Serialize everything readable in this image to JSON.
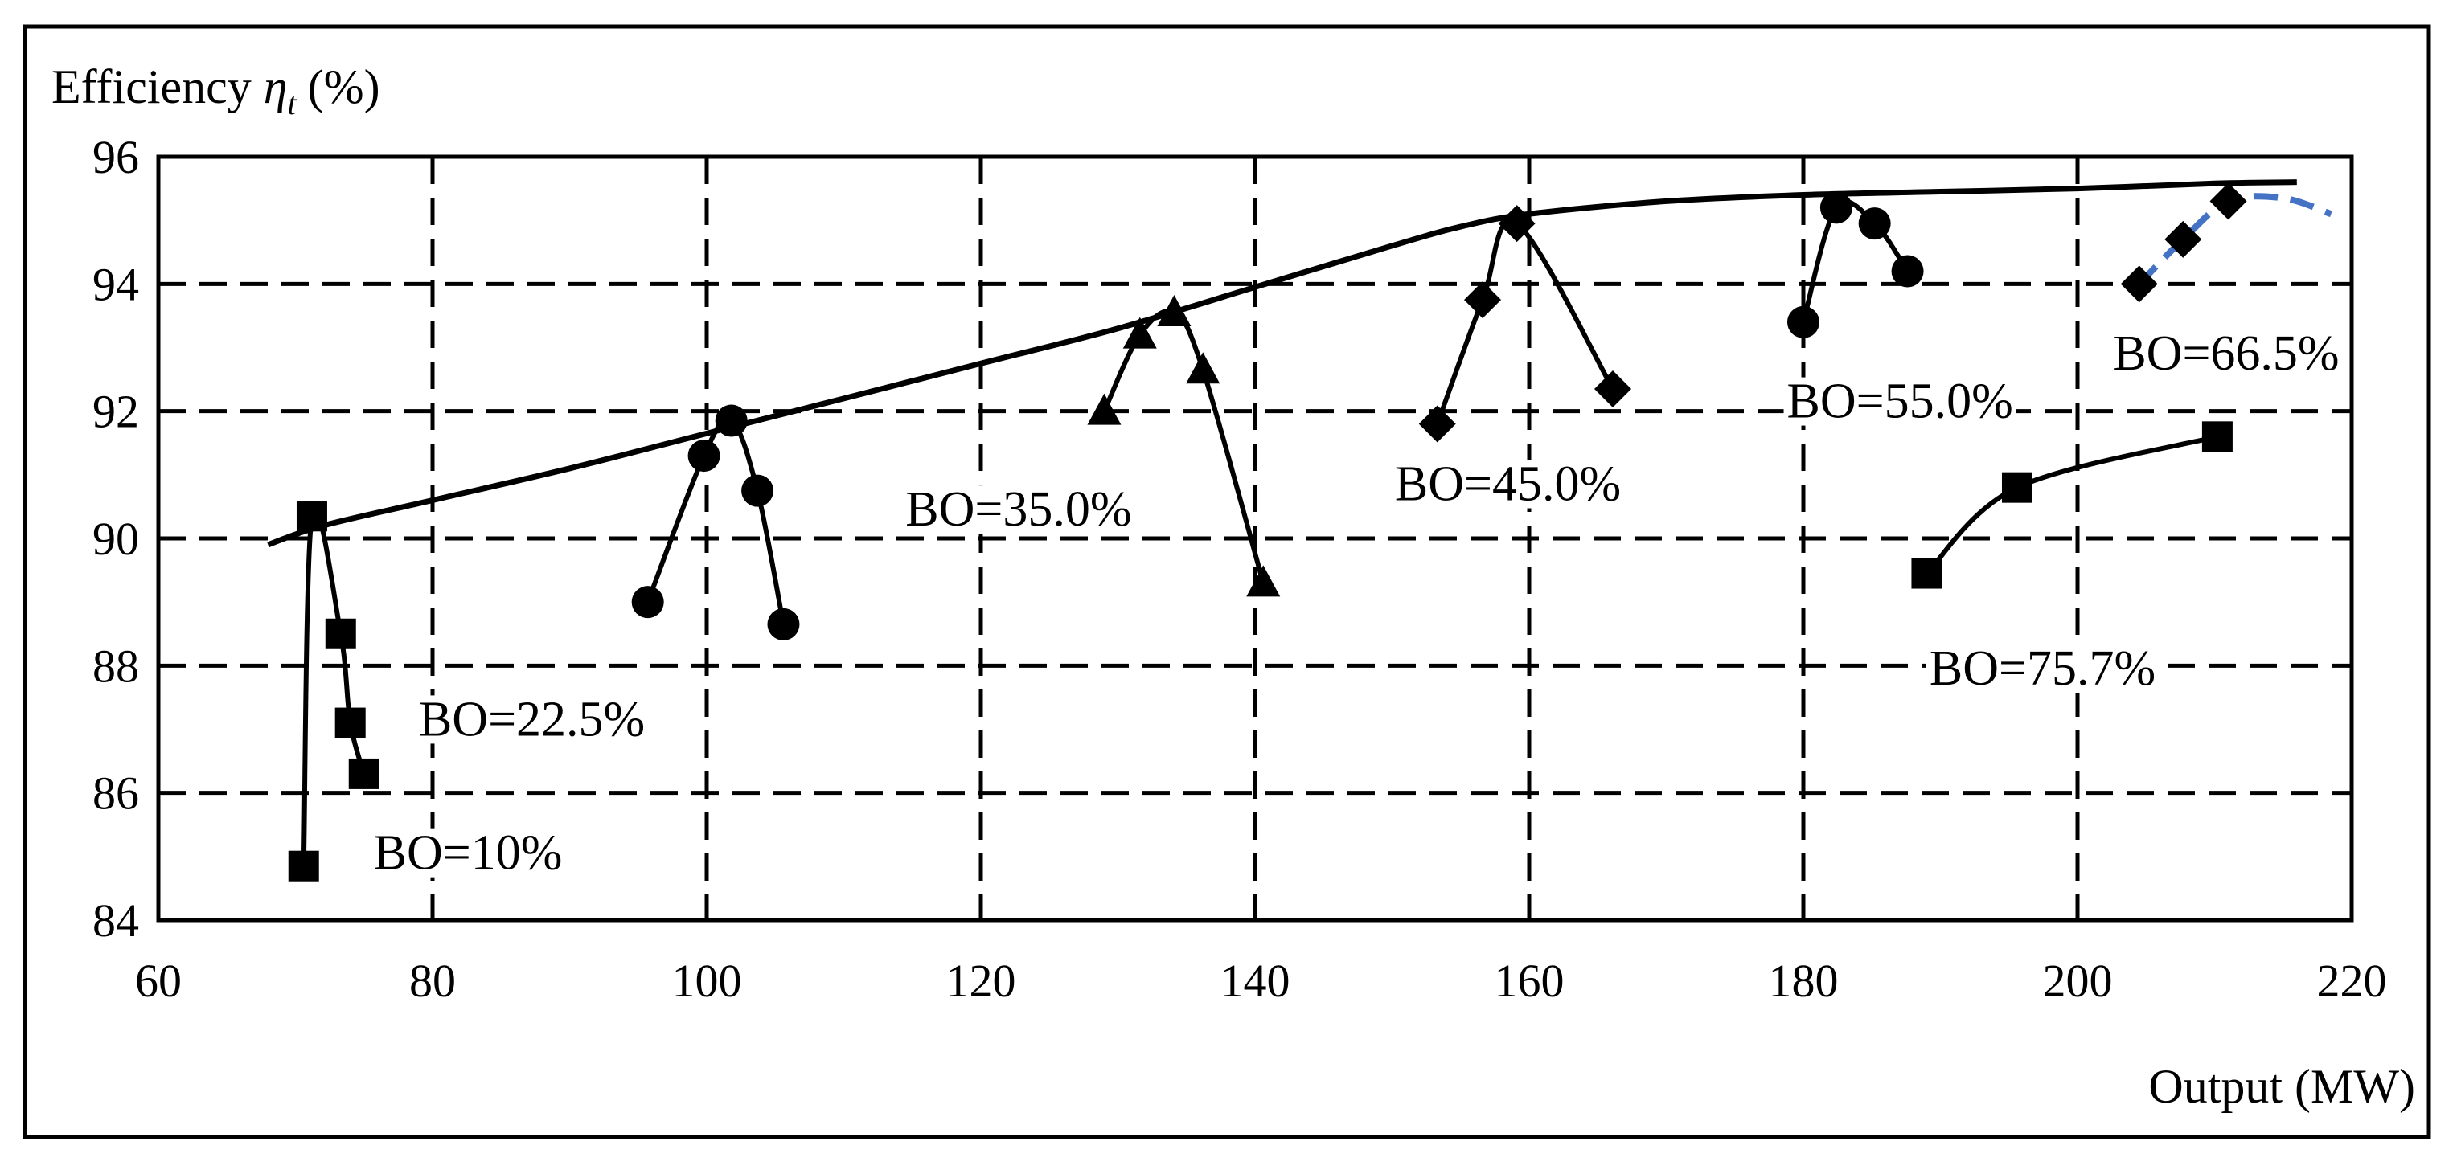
{
  "chart_data": {
    "type": "line",
    "title": "",
    "ylabel": "Efficiency",
    "ylabel_symbol": "η",
    "ylabel_subscript": "t",
    "ylabel_unit": "(%)",
    "xlabel": "Output (MW)",
    "xlim": [
      60,
      220
    ],
    "ylim": [
      84,
      96
    ],
    "xticks": [
      60,
      80,
      100,
      120,
      140,
      160,
      180,
      200,
      220
    ],
    "yticks": [
      84,
      86,
      88,
      90,
      92,
      94,
      96
    ],
    "grid": "dashed",
    "series": [
      {
        "name": "BO=10%",
        "marker": "square",
        "color": "#000000",
        "x": [
          70.6,
          71.2,
          73.3,
          74.0,
          75.0
        ],
        "y": [
          84.85,
          90.35,
          88.5,
          87.1,
          86.3
        ]
      },
      {
        "name": "BO=22.5%",
        "marker": "circle",
        "color": "#000000",
        "x": [
          95.7,
          99.8,
          101.8,
          103.7,
          105.6
        ],
        "y": [
          89.0,
          91.3,
          91.85,
          90.75,
          88.65
        ]
      },
      {
        "name": "BO=35.0%",
        "marker": "triangle",
        "color": "#000000",
        "x": [
          129.0,
          131.6,
          134.1,
          136.2,
          140.6
        ],
        "y": [
          92.0,
          93.2,
          93.55,
          92.65,
          89.3
        ]
      },
      {
        "name": "BO=45.0%",
        "marker": "diamond",
        "color": "#000000",
        "x": [
          153.3,
          156.6,
          159.1,
          166.1
        ],
        "y": [
          91.8,
          93.75,
          94.95,
          92.35
        ]
      },
      {
        "name": "BO=55.0%",
        "marker": "circle",
        "color": "#000000",
        "x": [
          180.0,
          182.4,
          185.2,
          187.6
        ],
        "y": [
          93.4,
          95.2,
          94.95,
          94.2
        ]
      },
      {
        "name": "BO=66.5%",
        "marker": "diamond",
        "color": "#4472C4",
        "x": [
          204.5,
          207.7,
          211.0
        ],
        "y": [
          94.0,
          94.7,
          95.3
        ]
      },
      {
        "name": "BO=75.7%",
        "marker": "square",
        "color": "#000000",
        "x": [
          189.0,
          195.6,
          210.2
        ],
        "y": [
          89.45,
          90.8,
          91.6
        ]
      }
    ],
    "envelope": {
      "x": [
        68,
        72,
        80,
        90,
        100,
        110,
        120,
        130,
        140,
        150,
        155,
        160,
        170,
        180,
        190,
        200,
        210,
        216
      ],
      "y": [
        89.9,
        90.2,
        90.6,
        91.1,
        91.65,
        92.2,
        92.75,
        93.3,
        93.95,
        94.6,
        94.9,
        95.1,
        95.3,
        95.4,
        95.45,
        95.5,
        95.58,
        95.6
      ]
    },
    "annotations": [
      {
        "text": "BO=10%",
        "x": 75.7,
        "y": 84.8
      },
      {
        "text": "BO=22.5%",
        "x": 79.0,
        "y": 86.9
      },
      {
        "text": "BO=35.0%",
        "x": 114.5,
        "y": 90.2
      },
      {
        "text": "BO=45.0%",
        "x": 150.2,
        "y": 90.6
      },
      {
        "text": "BO=55.0%",
        "x": 178.8,
        "y": 91.9
      },
      {
        "text": "BO=66.5%",
        "x": 202.6,
        "y": 92.65
      },
      {
        "text": "BO=75.7%",
        "x": 189.2,
        "y": 87.7
      }
    ]
  }
}
